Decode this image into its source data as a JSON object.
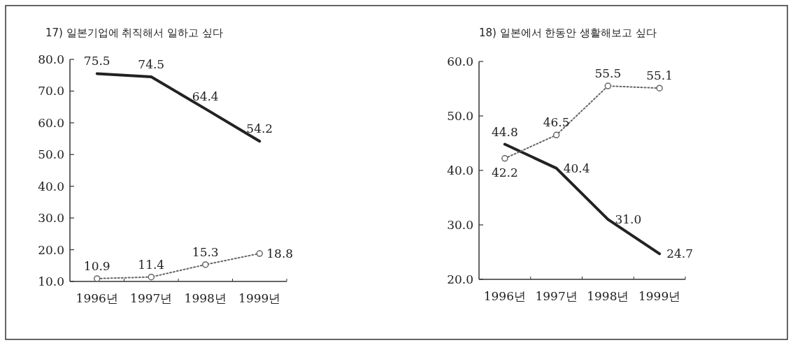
{
  "chart_data": [
    {
      "type": "line",
      "title": "17) 일본기업에 취직해서 일하고 싶다",
      "categories": [
        "1996년",
        "1997년",
        "1998년",
        "1999년"
      ],
      "ylim": [
        10,
        80
      ],
      "yticks": [
        {
          "value": 10,
          "label": "10.0"
        },
        {
          "value": 20,
          "label": "20.0"
        },
        {
          "value": 30,
          "label": "30.0"
        },
        {
          "value": 40,
          "label": "40.0"
        },
        {
          "value": 50,
          "label": "50.0"
        },
        {
          "value": 60,
          "label": "60.0"
        },
        {
          "value": 70,
          "label": "70.0"
        },
        {
          "value": 80,
          "label": "80.0"
        }
      ],
      "grid": false,
      "series": [
        {
          "color": "#222222",
          "values": [
            75.5,
            74.5,
            64.4,
            54.2
          ],
          "value_labels": [
            "75.5",
            "74.5",
            "64.4",
            "54.2"
          ],
          "line_style": "solid",
          "marker": "none"
        },
        {
          "color": "#666666",
          "values": [
            10.9,
            11.4,
            15.3,
            18.8
          ],
          "value_labels": [
            "10.9",
            "11.4",
            "15.3",
            "18.8"
          ],
          "line_style": "dotted",
          "marker": "circle"
        }
      ]
    },
    {
      "type": "line",
      "title": "18) 일본에서 한동안 생활해보고 싶다",
      "categories": [
        "1996년",
        "1997년",
        "1998년",
        "1999년"
      ],
      "ylim": [
        20,
        60
      ],
      "yticks": [
        {
          "value": 20,
          "label": "20.0"
        },
        {
          "value": 30,
          "label": "30.0"
        },
        {
          "value": 40,
          "label": "40.0"
        },
        {
          "value": 50,
          "label": "50.0"
        },
        {
          "value": 60,
          "label": "60.0"
        }
      ],
      "grid": false,
      "series": [
        {
          "color": "#222222",
          "values": [
            44.8,
            40.4,
            31.0,
            24.7
          ],
          "value_labels": [
            "44.8",
            "40.4",
            "31.0",
            "24.7"
          ],
          "line_style": "solid",
          "marker": "none"
        },
        {
          "color": "#666666",
          "values": [
            42.2,
            46.5,
            55.5,
            55.1
          ],
          "value_labels": [
            "42.2",
            "46.5",
            "55.5",
            "55.1"
          ],
          "line_style": "dotted",
          "marker": "circle"
        }
      ]
    }
  ]
}
